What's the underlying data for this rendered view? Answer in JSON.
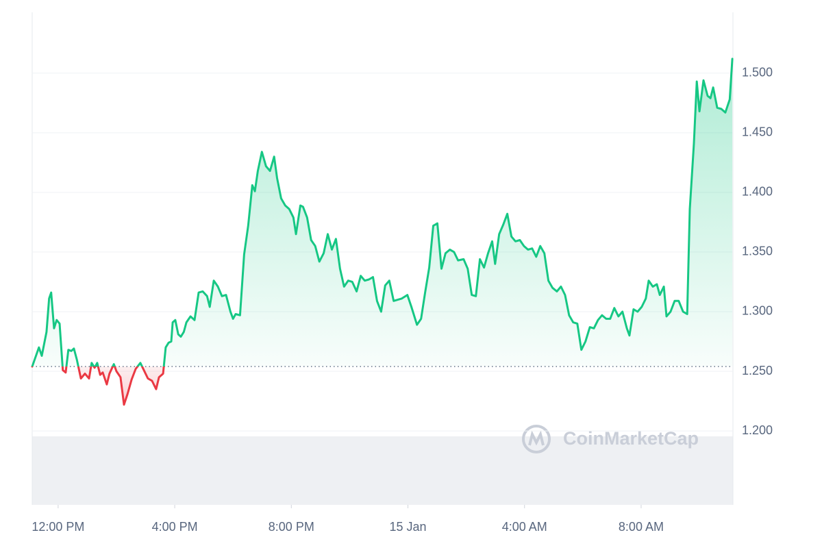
{
  "chart_data": {
    "type": "line",
    "watermark": "CoinMarketCap",
    "up_color": "#16c784",
    "down_color": "#ea3943",
    "baseline": 1.254,
    "grid": true,
    "xlim": [
      -0.89,
      23.15
    ],
    "xticks": [
      {
        "value": 0,
        "label": "12:00 PM"
      },
      {
        "value": 4,
        "label": "4:00 PM"
      },
      {
        "value": 8,
        "label": "8:00 PM"
      },
      {
        "value": 12,
        "label": "15 Jan"
      },
      {
        "value": 16,
        "label": "4:00 AM"
      },
      {
        "value": 20,
        "label": "8:00 AM"
      }
    ],
    "ylim": [
      1.138,
      1.551
    ],
    "yticks": [
      {
        "value": 1.2,
        "label": "1.200"
      },
      {
        "value": 1.25,
        "label": "1.250"
      },
      {
        "value": 1.3,
        "label": "1.300"
      },
      {
        "value": 1.35,
        "label": "1.350"
      },
      {
        "value": 1.4,
        "label": "1.400"
      },
      {
        "value": 1.45,
        "label": "1.450"
      },
      {
        "value": 1.5,
        "label": "1.500"
      }
    ],
    "x": [
      -0.89,
      -0.66,
      -0.56,
      -0.4,
      -0.31,
      -0.24,
      -0.14,
      -0.05,
      0.05,
      0.16,
      0.26,
      0.35,
      0.45,
      0.54,
      0.64,
      0.78,
      0.92,
      1.06,
      1.15,
      1.25,
      1.34,
      1.44,
      1.53,
      1.67,
      1.76,
      1.91,
      2.0,
      2.14,
      2.26,
      2.38,
      2.52,
      2.66,
      2.82,
      2.94,
      3.08,
      3.22,
      3.36,
      3.46,
      3.6,
      3.69,
      3.79,
      3.88,
      3.93,
      4.02,
      4.12,
      4.21,
      4.31,
      4.4,
      4.54,
      4.68,
      4.82,
      4.96,
      5.11,
      5.2,
      5.34,
      5.48,
      5.62,
      5.76,
      5.91,
      6.0,
      6.09,
      6.24,
      6.38,
      6.52,
      6.66,
      6.75,
      6.85,
      6.99,
      7.13,
      7.27,
      7.41,
      7.51,
      7.65,
      7.79,
      7.93,
      8.07,
      8.16,
      8.31,
      8.4,
      8.54,
      8.68,
      8.82,
      8.96,
      9.11,
      9.25,
      9.39,
      9.53,
      9.67,
      9.81,
      9.95,
      10.09,
      10.24,
      10.38,
      10.52,
      10.66,
      10.8,
      10.94,
      11.08,
      11.22,
      11.36,
      11.51,
      11.65,
      11.79,
      11.98,
      12.12,
      12.31,
      12.45,
      12.59,
      12.73,
      12.87,
      13.01,
      13.15,
      13.29,
      13.44,
      13.58,
      13.72,
      13.91,
      14.05,
      14.19,
      14.33,
      14.47,
      14.61,
      14.75,
      14.89,
      14.99,
      15.13,
      15.27,
      15.41,
      15.55,
      15.69,
      15.84,
      15.98,
      16.12,
      16.26,
      16.4,
      16.54,
      16.68,
      16.82,
      16.96,
      17.11,
      17.25,
      17.39,
      17.53,
      17.67,
      17.81,
      17.95,
      18.09,
      18.24,
      18.38,
      18.52,
      18.66,
      18.8,
      18.94,
      19.08,
      19.22,
      19.36,
      19.51,
      19.6,
      19.74,
      19.88,
      20.02,
      20.16,
      20.26,
      20.4,
      20.54,
      20.64,
      20.78,
      20.87,
      21.01,
      21.15,
      21.29,
      21.44,
      21.58,
      21.67,
      21.81,
      21.91,
      22.0,
      22.14,
      22.28,
      22.38,
      22.47,
      22.61,
      22.75,
      22.89,
      23.04,
      23.13
    ],
    "values": [
      1.254,
      1.27,
      1.263,
      1.283,
      1.311,
      1.316,
      1.286,
      1.293,
      1.29,
      1.251,
      1.249,
      1.268,
      1.267,
      1.269,
      1.26,
      1.244,
      1.248,
      1.244,
      1.257,
      1.253,
      1.257,
      1.247,
      1.249,
      1.239,
      1.248,
      1.256,
      1.25,
      1.245,
      1.222,
      1.231,
      1.243,
      1.252,
      1.257,
      1.251,
      1.244,
      1.242,
      1.235,
      1.245,
      1.248,
      1.27,
      1.274,
      1.275,
      1.291,
      1.293,
      1.281,
      1.279,
      1.283,
      1.291,
      1.296,
      1.293,
      1.316,
      1.317,
      1.313,
      1.304,
      1.326,
      1.321,
      1.313,
      1.314,
      1.3,
      1.294,
      1.298,
      1.297,
      1.348,
      1.372,
      1.406,
      1.401,
      1.418,
      1.434,
      1.422,
      1.418,
      1.43,
      1.412,
      1.395,
      1.389,
      1.386,
      1.379,
      1.365,
      1.389,
      1.388,
      1.379,
      1.36,
      1.355,
      1.342,
      1.349,
      1.365,
      1.352,
      1.361,
      1.336,
      1.321,
      1.326,
      1.325,
      1.317,
      1.33,
      1.326,
      1.327,
      1.329,
      1.309,
      1.3,
      1.322,
      1.326,
      1.309,
      1.31,
      1.311,
      1.314,
      1.304,
      1.289,
      1.294,
      1.316,
      1.337,
      1.372,
      1.374,
      1.336,
      1.349,
      1.352,
      1.35,
      1.343,
      1.344,
      1.336,
      1.314,
      1.313,
      1.344,
      1.337,
      1.349,
      1.359,
      1.34,
      1.365,
      1.373,
      1.382,
      1.363,
      1.359,
      1.36,
      1.355,
      1.352,
      1.353,
      1.346,
      1.355,
      1.349,
      1.326,
      1.32,
      1.317,
      1.321,
      1.314,
      1.297,
      1.291,
      1.29,
      1.268,
      1.275,
      1.287,
      1.286,
      1.293,
      1.297,
      1.294,
      1.294,
      1.303,
      1.296,
      1.3,
      1.286,
      1.28,
      1.302,
      1.3,
      1.304,
      1.311,
      1.326,
      1.321,
      1.323,
      1.314,
      1.321,
      1.296,
      1.3,
      1.309,
      1.309,
      1.3,
      1.298,
      1.386,
      1.441,
      1.493,
      1.468,
      1.494,
      1.481,
      1.479,
      1.488,
      1.471,
      1.47,
      1.467,
      1.478,
      1.512
    ]
  }
}
